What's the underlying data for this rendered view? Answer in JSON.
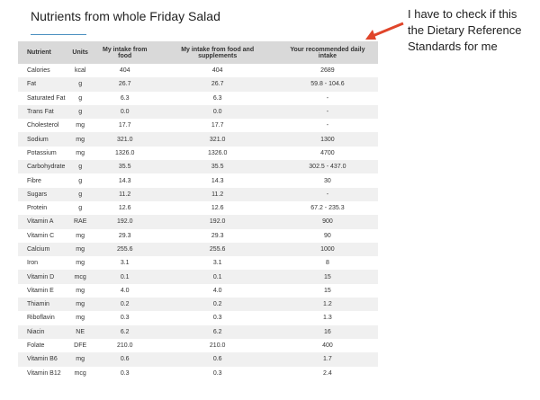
{
  "header": {
    "title": "Nutrients from whole Friday Salad"
  },
  "annotation": {
    "lines": [
      "I have to check if this",
      "the Dietary Reference",
      "Standards for me"
    ]
  },
  "table": {
    "columns": [
      "Nutrient",
      "Units",
      "My intake from food",
      "My intake from food and supplements",
      "Your recommended daily intake"
    ],
    "rows": [
      [
        "Calories",
        "kcal",
        "404",
        "404",
        "2689"
      ],
      [
        "Fat",
        "g",
        "26.7",
        "26.7",
        "59.8 - 104.6"
      ],
      [
        "Saturated Fat",
        "g",
        "6.3",
        "6.3",
        "-"
      ],
      [
        "Trans Fat",
        "g",
        "0.0",
        "0.0",
        "-"
      ],
      [
        "Cholesterol",
        "mg",
        "17.7",
        "17.7",
        "-"
      ],
      [
        "Sodium",
        "mg",
        "321.0",
        "321.0",
        "1300"
      ],
      [
        "Potassium",
        "mg",
        "1326.0",
        "1326.0",
        "4700"
      ],
      [
        "Carbohydrate",
        "g",
        "35.5",
        "35.5",
        "302.5 - 437.0"
      ],
      [
        "Fibre",
        "g",
        "14.3",
        "14.3",
        "30"
      ],
      [
        "Sugars",
        "g",
        "11.2",
        "11.2",
        "-"
      ],
      [
        "Protein",
        "g",
        "12.6",
        "12.6",
        "67.2 - 235.3"
      ],
      [
        "Vitamin A",
        "RAE",
        "192.0",
        "192.0",
        "900"
      ],
      [
        "Vitamin C",
        "mg",
        "29.3",
        "29.3",
        "90"
      ],
      [
        "Calcium",
        "mg",
        "255.6",
        "255.6",
        "1000"
      ],
      [
        "Iron",
        "mg",
        "3.1",
        "3.1",
        "8"
      ],
      [
        "Vitamin D",
        "mcg",
        "0.1",
        "0.1",
        "15"
      ],
      [
        "Vitamin E",
        "mg",
        "4.0",
        "4.0",
        "15"
      ],
      [
        "Thiamin",
        "mg",
        "0.2",
        "0.2",
        "1.2"
      ],
      [
        "Riboflavin",
        "mg",
        "0.3",
        "0.3",
        "1.3"
      ],
      [
        "Niacin",
        "NE",
        "6.2",
        "6.2",
        "16"
      ],
      [
        "Folate",
        "DFE",
        "210.0",
        "210.0",
        "400"
      ],
      [
        "Vitamin B6",
        "mg",
        "0.6",
        "0.6",
        "1.7"
      ],
      [
        "Vitamin B12",
        "mcg",
        "0.3",
        "0.3",
        "2.4"
      ]
    ]
  }
}
